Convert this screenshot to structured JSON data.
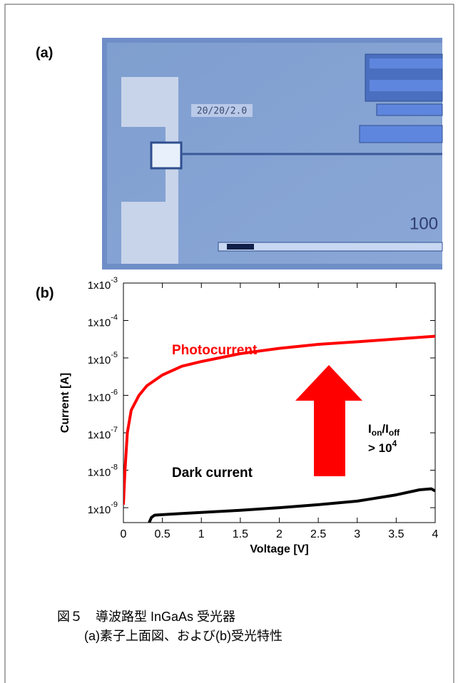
{
  "panel_a": {
    "label": "(a)",
    "photo_texts": [
      "20/20/2.0",
      "100"
    ]
  },
  "chart_data": {
    "type": "line",
    "panel_label": "(b)",
    "x_label": "Voltage [V]",
    "y_label": "Current [A]",
    "log_y": true,
    "xlim": [
      0,
      4
    ],
    "ylim": [
      4e-10,
      0.001
    ],
    "xticks": [
      0,
      0.5,
      1,
      1.5,
      2,
      2.5,
      3,
      3.5,
      4
    ],
    "yticks": [
      {
        "value": 1e-09,
        "label": "1x10-9"
      },
      {
        "value": 1e-08,
        "label": "1x10-8"
      },
      {
        "value": 1e-07,
        "label": "1x10-7"
      },
      {
        "value": 1e-06,
        "label": "1x10-6"
      },
      {
        "value": 1e-05,
        "label": "1x10-5"
      },
      {
        "value": 0.0001,
        "label": "1x10-4"
      },
      {
        "value": 0.001,
        "label": "1x10-3"
      }
    ],
    "series": [
      {
        "name": "Photocurrent",
        "color": "#ff0000",
        "x": [
          0,
          0.02,
          0.05,
          0.1,
          0.2,
          0.3,
          0.5,
          0.75,
          1,
          1.5,
          2,
          2.5,
          3,
          3.5,
          4
        ],
        "values": [
          1.2e-09,
          1e-08,
          1e-07,
          4e-07,
          1e-06,
          1.8e-06,
          3.5e-06,
          6e-06,
          8e-06,
          1.3e-05,
          1.8e-05,
          2.3e-05,
          2.7e-05,
          3.2e-05,
          3.8e-05
        ]
      },
      {
        "name": "Dark current",
        "color": "#000000",
        "x": [
          0.33,
          0.36,
          0.4,
          0.5,
          0.75,
          1,
          1.5,
          2,
          2.5,
          3,
          3.5,
          3.8,
          3.95,
          4
        ],
        "values": [
          4e-10,
          5.5e-10,
          6.3e-10,
          6.5e-10,
          7e-10,
          7.5e-10,
          8.5e-10,
          1e-09,
          1.2e-09,
          1.5e-09,
          2.2e-09,
          3e-09,
          3.2e-09,
          2.8e-09
        ]
      }
    ],
    "annotation": {
      "ratio_parts": [
        "I",
        "on",
        "/I",
        "off"
      ],
      "bound_parts": [
        "> 10",
        "4"
      ]
    }
  },
  "caption": {
    "line1": "図５　導波路型 InGaAs 受光器",
    "line2": "(a)素子上面図、および(b)受光特性"
  }
}
